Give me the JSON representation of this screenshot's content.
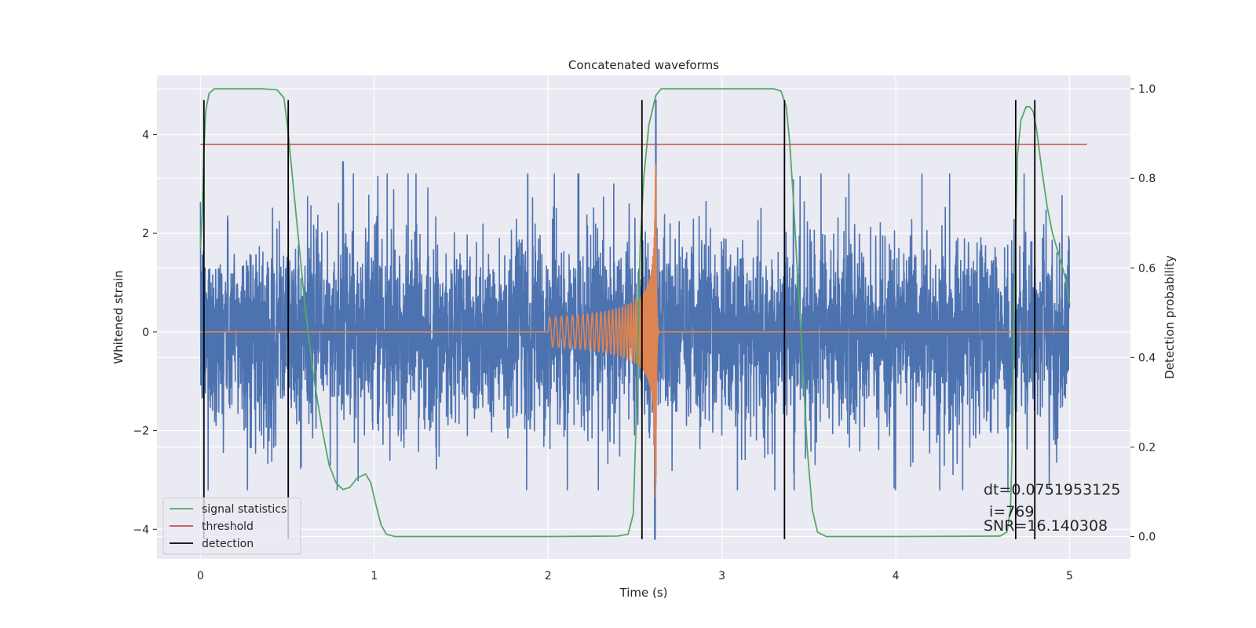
{
  "chart_data": {
    "type": "line",
    "title": "Concatenated waveforms",
    "xlabel": "Time (s)",
    "ylabel_left": "Whitened strain",
    "ylabel_right": "Detection probability",
    "xlim": [
      -0.25,
      5.35
    ],
    "ylim_left": [
      -4.6,
      5.2
    ],
    "ylim_right": [
      -0.05,
      1.03
    ],
    "xticks": [
      0,
      1,
      2,
      3,
      4,
      5
    ],
    "yticks_left": [
      -4,
      -2,
      0,
      2,
      4
    ],
    "yticks_right": [
      0.0,
      0.2,
      0.4,
      0.6,
      0.8,
      1.0
    ],
    "grid": true,
    "legend_position": "bottom-left",
    "colors": {
      "strain": "#4c72b0",
      "template": "#dd8452",
      "signal_statistics": "#55a868",
      "threshold": "#c44e52",
      "detection": "#000000",
      "axes_bg": "#eaeaf2",
      "grid": "#ffffff"
    },
    "series": [
      {
        "name": "",
        "role": "noisy whitened strain",
        "x_range": [
          0,
          5
        ],
        "amplitude_envelope": 3.2
      },
      {
        "name": "",
        "role": "injected template",
        "chirp_start": 2.0,
        "merger": 2.62,
        "end": 2.64,
        "peak_amplitude": 3.4
      },
      {
        "name": "signal statistics",
        "axis": "right",
        "points": [
          [
            0.0,
            0.645
          ],
          [
            0.01,
            0.72
          ],
          [
            0.02,
            0.86
          ],
          [
            0.03,
            0.95
          ],
          [
            0.05,
            0.99
          ],
          [
            0.08,
            1.0
          ],
          [
            0.2,
            1.0
          ],
          [
            0.35,
            1.0
          ],
          [
            0.44,
            0.998
          ],
          [
            0.48,
            0.98
          ],
          [
            0.5,
            0.92
          ],
          [
            0.53,
            0.8
          ],
          [
            0.56,
            0.68
          ],
          [
            0.6,
            0.52
          ],
          [
            0.65,
            0.36
          ],
          [
            0.7,
            0.24
          ],
          [
            0.74,
            0.16
          ],
          [
            0.78,
            0.12
          ],
          [
            0.82,
            0.105
          ],
          [
            0.86,
            0.11
          ],
          [
            0.9,
            0.13
          ],
          [
            0.95,
            0.14
          ],
          [
            0.98,
            0.12
          ],
          [
            1.01,
            0.07
          ],
          [
            1.04,
            0.025
          ],
          [
            1.07,
            0.005
          ],
          [
            1.12,
            0.0
          ],
          [
            1.5,
            0.0
          ],
          [
            2.0,
            0.0
          ],
          [
            2.4,
            0.001
          ],
          [
            2.46,
            0.005
          ],
          [
            2.49,
            0.05
          ],
          [
            2.51,
            0.3
          ],
          [
            2.53,
            0.65
          ],
          [
            2.55,
            0.8
          ],
          [
            2.58,
            0.92
          ],
          [
            2.62,
            0.985
          ],
          [
            2.65,
            1.0
          ],
          [
            2.8,
            1.0
          ],
          [
            3.3,
            1.0
          ],
          [
            3.34,
            0.995
          ],
          [
            3.37,
            0.96
          ],
          [
            3.39,
            0.88
          ],
          [
            3.41,
            0.76
          ],
          [
            3.43,
            0.62
          ],
          [
            3.46,
            0.42
          ],
          [
            3.49,
            0.2
          ],
          [
            3.52,
            0.06
          ],
          [
            3.55,
            0.01
          ],
          [
            3.6,
            0.0
          ],
          [
            4.0,
            0.0
          ],
          [
            4.6,
            0.001
          ],
          [
            4.64,
            0.01
          ],
          [
            4.66,
            0.06
          ],
          [
            4.67,
            0.2
          ],
          [
            4.68,
            0.5
          ],
          [
            4.7,
            0.85
          ],
          [
            4.72,
            0.93
          ],
          [
            4.75,
            0.96
          ],
          [
            4.77,
            0.96
          ],
          [
            4.79,
            0.95
          ],
          [
            4.81,
            0.91
          ],
          [
            4.84,
            0.82
          ],
          [
            4.87,
            0.74
          ],
          [
            4.9,
            0.68
          ],
          [
            4.93,
            0.64
          ],
          [
            4.96,
            0.6
          ],
          [
            4.98,
            0.57
          ],
          [
            5.0,
            0.52
          ]
        ]
      },
      {
        "name": "threshold",
        "axis": "left",
        "y": 3.8,
        "x_range": [
          0,
          5.1
        ]
      },
      {
        "name": "detection",
        "axis": "left",
        "y_range": [
          -4.2,
          4.7
        ],
        "x": [
          0.02,
          0.505,
          2.54,
          3.36,
          4.69,
          4.8
        ]
      }
    ],
    "annotations": [
      "dt=0.0751953125",
      "i=769",
      "SNR=16.140308"
    ]
  }
}
